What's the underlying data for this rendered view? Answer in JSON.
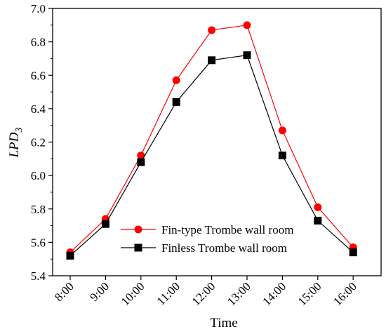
{
  "chart_data": {
    "type": "line",
    "xlabel": "Time",
    "ylabel": "LPD",
    "ylabel_subscript": "3",
    "categories": [
      "8:00",
      "9:00",
      "10:00",
      "11:00",
      "12:00",
      "13:00",
      "14:00",
      "15:00",
      "16:00"
    ],
    "ylim": [
      5.4,
      7.0
    ],
    "yticks": [
      "5.4",
      "5.6",
      "5.8",
      "6.0",
      "6.2",
      "6.4",
      "6.6",
      "6.8",
      "7.0"
    ],
    "grid": false,
    "legend_position": "bottom-right",
    "series": [
      {
        "name": "Fin-type Trombe wall room",
        "color": "#ff0000",
        "marker": "circle",
        "values": [
          5.54,
          5.74,
          6.12,
          6.57,
          6.87,
          6.9,
          6.27,
          5.81,
          5.57
        ]
      },
      {
        "name": "Finless Trombe wall room",
        "color": "#000000",
        "marker": "square",
        "values": [
          5.52,
          5.71,
          6.08,
          6.44,
          6.69,
          6.72,
          6.12,
          5.73,
          5.54
        ]
      }
    ]
  }
}
